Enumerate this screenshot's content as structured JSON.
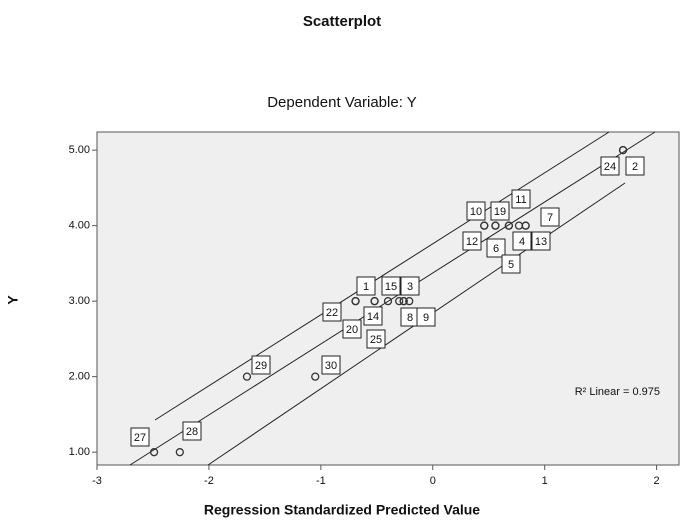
{
  "chart_data": {
    "type": "scatter",
    "title": "Scatterplot",
    "subtitle": "Dependent Variable: Y",
    "x_label": "Regression Standardized Predicted Value",
    "y_label": "Y",
    "xlim": [
      -3,
      2.2
    ],
    "ylim": [
      0.83,
      5.24
    ],
    "xticks": [
      -3,
      -2,
      -1,
      0,
      1,
      2
    ],
    "yticks": [
      {
        "value": 1,
        "label": "1.00"
      },
      {
        "value": 2,
        "label": "2.00"
      },
      {
        "value": 3,
        "label": "3.00"
      },
      {
        "value": 4,
        "label": "4.00"
      },
      {
        "value": 5,
        "label": "5.00"
      }
    ],
    "annotation": "R² Linear = 0.975",
    "x": [
      1.7,
      1.7,
      -2.49,
      -2.26,
      -1.66,
      -1.05,
      -0.69,
      -0.69,
      -0.52,
      -0.52,
      -0.4,
      -0.3,
      -0.26,
      -0.26,
      -0.21,
      0.46,
      0.46,
      0.56,
      0.56,
      0.68,
      0.68,
      0.77,
      0.83,
      0.83
    ],
    "series": [
      {
        "name": "Y",
        "color": "#333333",
        "values": [
          5,
          5,
          1,
          1,
          2,
          2,
          3,
          3,
          3,
          3,
          3,
          3,
          3,
          3,
          3,
          4,
          4,
          4,
          4,
          4,
          4,
          4,
          4,
          4
        ]
      }
    ],
    "point_labels": [
      "24",
      "2",
      "27",
      "28",
      "29",
      "30",
      "22",
      "1",
      "20",
      "14",
      "15",
      "25",
      "3",
      "8",
      "9",
      "10",
      "12",
      "19",
      "6",
      "11",
      "5",
      "4",
      "7",
      "13"
    ]
  }
}
